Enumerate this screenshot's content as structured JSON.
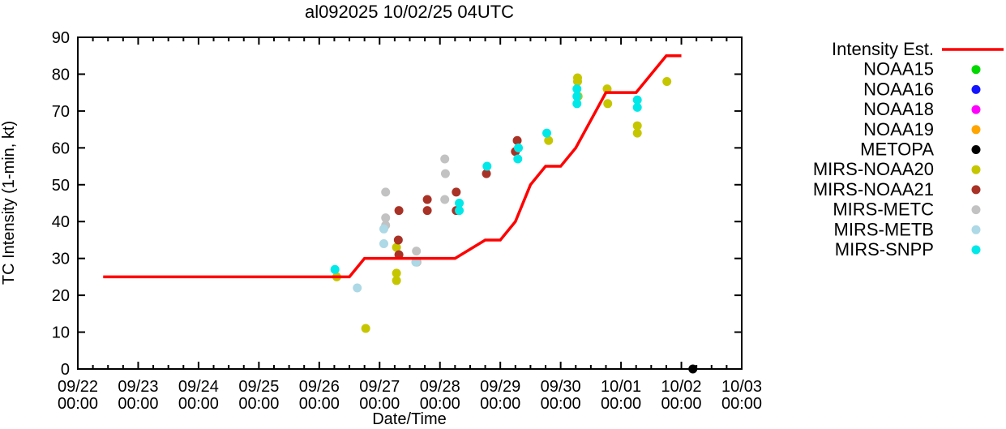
{
  "title": "al092025 10/02/25 04UTC",
  "axes": {
    "ylabel": "TC Intensity (1-min, kt)",
    "xlabel": "Date/Time",
    "y_ticks": [
      0,
      10,
      20,
      30,
      40,
      50,
      60,
      70,
      80,
      90
    ],
    "y_range": [
      0,
      90
    ],
    "x_tick_dates": [
      "09/22",
      "09/23",
      "09/24",
      "09/25",
      "09/26",
      "09/27",
      "09/28",
      "09/29",
      "09/30",
      "10/01",
      "10/02",
      "10/03"
    ],
    "x_tick_time": "00:00",
    "x_range_days": [
      0,
      11
    ],
    "x_minor_ticks_per_day": 4,
    "grid": "off"
  },
  "chart_data": {
    "type": "line+scatter",
    "title": "al092025 10/02/25 04UTC",
    "xlabel": "Date/Time",
    "ylabel": "TC Intensity (1-min, kt)",
    "ylim": [
      0,
      90
    ],
    "x_unit": "days since 09/22 00:00 UTC",
    "legend_position": "right-outside",
    "series": [
      {
        "name": "Intensity Est.",
        "type": "line",
        "color": "#ff0000",
        "points": [
          [
            0.42,
            25
          ],
          [
            4.5,
            25
          ],
          [
            4.75,
            30
          ],
          [
            6.25,
            30
          ],
          [
            6.75,
            35
          ],
          [
            7.0,
            35
          ],
          [
            7.25,
            40
          ],
          [
            7.5,
            50
          ],
          [
            7.75,
            55
          ],
          [
            8.0,
            55
          ],
          [
            8.25,
            60
          ],
          [
            8.75,
            75
          ],
          [
            9.25,
            75
          ],
          [
            9.75,
            85
          ],
          [
            10.0,
            85
          ]
        ]
      },
      {
        "name": "NOAA15",
        "type": "scatter",
        "color": "#00d800",
        "points": []
      },
      {
        "name": "NOAA16",
        "type": "scatter",
        "color": "#1414ff",
        "points": []
      },
      {
        "name": "NOAA18",
        "type": "scatter",
        "color": "#ff00ff",
        "points": []
      },
      {
        "name": "NOAA19",
        "type": "scatter",
        "color": "#ffa500",
        "points": []
      },
      {
        "name": "METOPA",
        "type": "scatter",
        "color": "#000000",
        "points": [
          [
            10.19,
            0
          ]
        ]
      },
      {
        "name": "MIRS-NOAA20",
        "type": "scatter",
        "color": "#c6c600",
        "points": [
          [
            4.29,
            25
          ],
          [
            4.77,
            11
          ],
          [
            5.28,
            33
          ],
          [
            5.28,
            26
          ],
          [
            5.28,
            24
          ],
          [
            7.8,
            62
          ],
          [
            8.28,
            79
          ],
          [
            8.28,
            78
          ],
          [
            8.29,
            74
          ],
          [
            8.77,
            76
          ],
          [
            8.78,
            72
          ],
          [
            9.27,
            66
          ],
          [
            9.27,
            64
          ],
          [
            9.76,
            78
          ]
        ]
      },
      {
        "name": "MIRS-NOAA21",
        "type": "scatter",
        "color": "#a93226",
        "points": [
          [
            5.32,
            43
          ],
          [
            5.31,
            35
          ],
          [
            5.32,
            31
          ],
          [
            5.79,
            46
          ],
          [
            5.79,
            43
          ],
          [
            6.27,
            48
          ],
          [
            6.27,
            43
          ],
          [
            6.77,
            53
          ],
          [
            7.25,
            59
          ],
          [
            7.28,
            62
          ]
        ]
      },
      {
        "name": "MIRS-METC",
        "type": "scatter",
        "color": "#c2c2c2",
        "points": [
          [
            5.1,
            48
          ],
          [
            5.1,
            41
          ],
          [
            5.1,
            39
          ],
          [
            5.61,
            32
          ],
          [
            5.62,
            29
          ],
          [
            6.08,
            57
          ],
          [
            6.09,
            53
          ],
          [
            6.08,
            46
          ]
        ]
      },
      {
        "name": "MIRS-METB",
        "type": "scatter",
        "color": "#add8e6",
        "points": [
          [
            4.63,
            22
          ],
          [
            5.07,
            38
          ],
          [
            5.07,
            34
          ],
          [
            5.6,
            29
          ]
        ]
      },
      {
        "name": "MIRS-SNPP",
        "type": "scatter",
        "color": "#00e8e8",
        "points": [
          [
            4.26,
            27
          ],
          [
            6.32,
            45
          ],
          [
            6.32,
            43
          ],
          [
            6.78,
            55
          ],
          [
            7.29,
            57
          ],
          [
            7.3,
            60
          ],
          [
            7.77,
            64
          ],
          [
            8.27,
            76
          ],
          [
            8.27,
            74
          ],
          [
            8.27,
            72
          ],
          [
            9.27,
            73
          ],
          [
            9.27,
            71
          ]
        ]
      }
    ]
  }
}
